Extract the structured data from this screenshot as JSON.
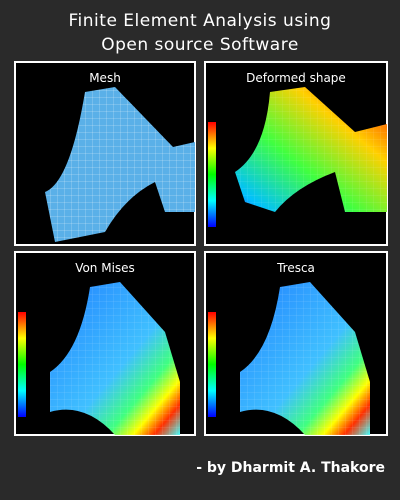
{
  "title": {
    "line1": "Finite Element Analysis using",
    "line2": "Open source Software"
  },
  "panels": [
    {
      "label": "Mesh"
    },
    {
      "label": "Deformed shape"
    },
    {
      "label": "Von Mises"
    },
    {
      "label": "Tresca"
    }
  ],
  "byline": "- by Dharmit A. Thakore"
}
